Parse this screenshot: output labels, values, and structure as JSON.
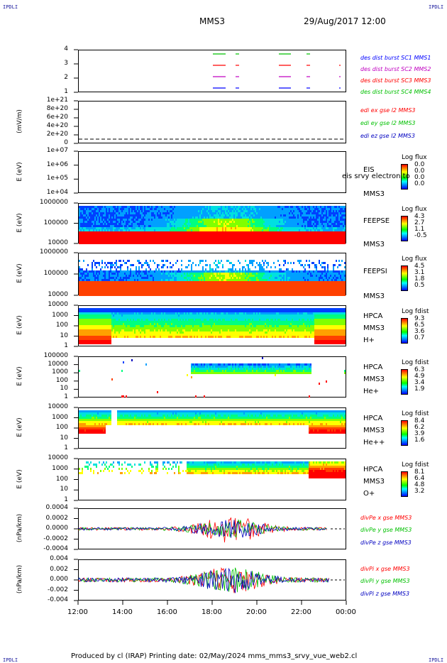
{
  "header": {
    "corner_left": "IPDLI",
    "corner_right": "IPDLI",
    "title": "MMS3",
    "date": "29/Aug/2017 12:00"
  },
  "footer": {
    "text": "Produced by cl (IRAP)   Printing date: 02/May/2024   mms_mms3_srvy_vue_web2.cl",
    "corner_left": "IPDLI",
    "corner_right": "IPDLI"
  },
  "time_axis": {
    "labels": [
      "12:00",
      "14:00",
      "16:00",
      "18:00",
      "20:00",
      "22:00",
      "00:00"
    ]
  },
  "colors": {
    "sc1": "#00c000",
    "sc2": "#ff0000",
    "sc3": "#c000c0",
    "sc4": "#0000ff",
    "ex": "#ff0000",
    "ey": "#00c000",
    "ez": "#0000c0"
  },
  "chart_data": [
    {
      "type": "line",
      "name": "des_dist_burst",
      "yticks": [
        "4",
        "3",
        "2",
        "1"
      ],
      "legend": [
        "des dist burst SC1 MMS1",
        "des dist burst SC2 MMS2",
        "des dist burst SC3 MMS3",
        "des dist burst SC4 MMS4"
      ]
    },
    {
      "type": "line",
      "name": "edi_e",
      "ylabel": "(mV/m)",
      "yticks": [
        "1e+21",
        "8e+20",
        "6e+20",
        "4e+20",
        "2e+20",
        "0"
      ],
      "legend": [
        "edi ex gse l2 MMS3",
        "edi ey gse l2 MMS3",
        "edi ez gse l2 MMS3"
      ]
    },
    {
      "type": "heatmap",
      "name": "eis",
      "ylabel": "E (eV)",
      "yticks": [
        "1e+07",
        "1e+06",
        "1e+05",
        "1e+04"
      ],
      "instrument": [
        "EIS",
        "MMS3"
      ],
      "overlay_text": "eis srvy electron to",
      "colorbar": {
        "title": "Log flux",
        "labels": [
          "0.0",
          "0.0",
          "0.0",
          "0.0"
        ]
      }
    },
    {
      "type": "heatmap",
      "name": "feepse",
      "ylabel": "E (eV)",
      "yticks": [
        "1000000",
        "100000",
        "10000"
      ],
      "instrument": [
        "FEEPSE",
        "MMS3"
      ],
      "colorbar": {
        "title": "Log flux",
        "labels": [
          "4.3",
          "2.7",
          "1.1",
          "-0.5"
        ]
      }
    },
    {
      "type": "heatmap",
      "name": "feepsi",
      "ylabel": "E (eV)",
      "yticks": [
        "1000000",
        "100000",
        "10000"
      ],
      "instrument": [
        "FEEPSI",
        "MMS3"
      ],
      "colorbar": {
        "title": "Log flux",
        "labels": [
          "4.5",
          "3.1",
          "1.8",
          "0.5"
        ]
      }
    },
    {
      "type": "heatmap",
      "name": "hpca_h",
      "ylabel": "E (eV)",
      "yticks": [
        "10000",
        "1000",
        "100",
        "10",
        "1"
      ],
      "instrument": [
        "HPCA",
        "MMS3",
        "H+"
      ],
      "colorbar": {
        "title": "Log fdist",
        "labels": [
          "9.3",
          "6.5",
          "3.6",
          "0.7"
        ]
      }
    },
    {
      "type": "heatmap",
      "name": "hpca_he",
      "ylabel": "E (eV)",
      "yticks": [
        "100000",
        "10000",
        "1000",
        "100",
        "10",
        "1"
      ],
      "instrument": [
        "HPCA",
        "MMS3",
        "He+"
      ],
      "colorbar": {
        "title": "Log fdist",
        "labels": [
          "6.3",
          "4.9",
          "3.4",
          "1.9"
        ]
      }
    },
    {
      "type": "heatmap",
      "name": "hpca_hepp",
      "ylabel": "E (eV)",
      "yticks": [
        "10000",
        "1000",
        "100",
        "10",
        "1"
      ],
      "instrument": [
        "HPCA",
        "MMS3",
        "He++"
      ],
      "colorbar": {
        "title": "Log fdist",
        "labels": [
          "8.4",
          "6.2",
          "3.9",
          "1.6"
        ]
      }
    },
    {
      "type": "heatmap",
      "name": "hpca_o",
      "ylabel": "E (eV)",
      "yticks": [
        "10000",
        "1000",
        "100",
        "10",
        "1"
      ],
      "instrument": [
        "HPCA",
        "MMS3",
        "O+"
      ],
      "colorbar": {
        "title": "Log fdist",
        "labels": [
          "8.1",
          "6.4",
          "4.8",
          "3.2"
        ]
      }
    },
    {
      "type": "line",
      "name": "divpe",
      "ylabel": "(nPa/km)",
      "yticks": [
        "0.0004",
        "0.0002",
        "0.0000",
        "-0.0002",
        "-0.0004"
      ],
      "legend": [
        "divPe x gse MMS3",
        "divPe y gse MMS3",
        "divPe z gse MMS3"
      ]
    },
    {
      "type": "line",
      "name": "divpi",
      "ylabel": "(nPa/km)",
      "yticks": [
        "0.004",
        "0.002",
        "0.000",
        "-0.002",
        "-0.004"
      ],
      "legend": [
        "divPi x gse MMS3",
        "divPi y gse MMS3",
        "divPi z gse MMS3"
      ]
    }
  ]
}
